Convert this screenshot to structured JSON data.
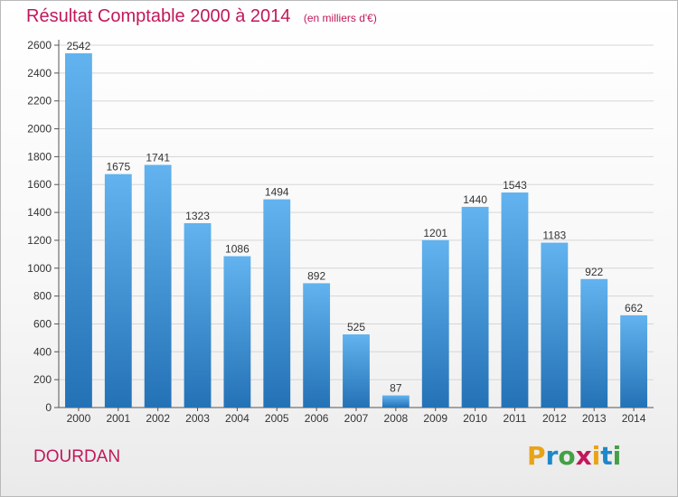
{
  "title": "Résultat Comptable 2000 à 2014",
  "subtitle": "(en milliers d'€)",
  "commune": "DOURDAN",
  "logo": {
    "letters": [
      "P",
      "r",
      "o",
      "x",
      "i",
      "t",
      "i"
    ],
    "colors": [
      "#e8a317",
      "#1e88c8",
      "#43a047",
      "#c2185b",
      "#e8a317",
      "#1e88c8",
      "#43a047"
    ]
  },
  "colors": {
    "bar_top": "#62b3ef",
    "bar_bottom": "#2472b6",
    "title": "#c2185b"
  },
  "chart_data": {
    "type": "bar",
    "categories": [
      "2000",
      "2001",
      "2002",
      "2003",
      "2004",
      "2005",
      "2006",
      "2007",
      "2008",
      "2009",
      "2010",
      "2011",
      "2012",
      "2013",
      "2014"
    ],
    "values": [
      2542,
      1675,
      1741,
      1323,
      1086,
      1494,
      892,
      525,
      87,
      1201,
      1440,
      1543,
      1183,
      922,
      662
    ],
    "ylim": [
      0,
      2600
    ],
    "yticks": [
      0,
      200,
      400,
      600,
      800,
      1000,
      1200,
      1400,
      1600,
      1800,
      2000,
      2200,
      2400,
      2600
    ],
    "grid": true
  }
}
